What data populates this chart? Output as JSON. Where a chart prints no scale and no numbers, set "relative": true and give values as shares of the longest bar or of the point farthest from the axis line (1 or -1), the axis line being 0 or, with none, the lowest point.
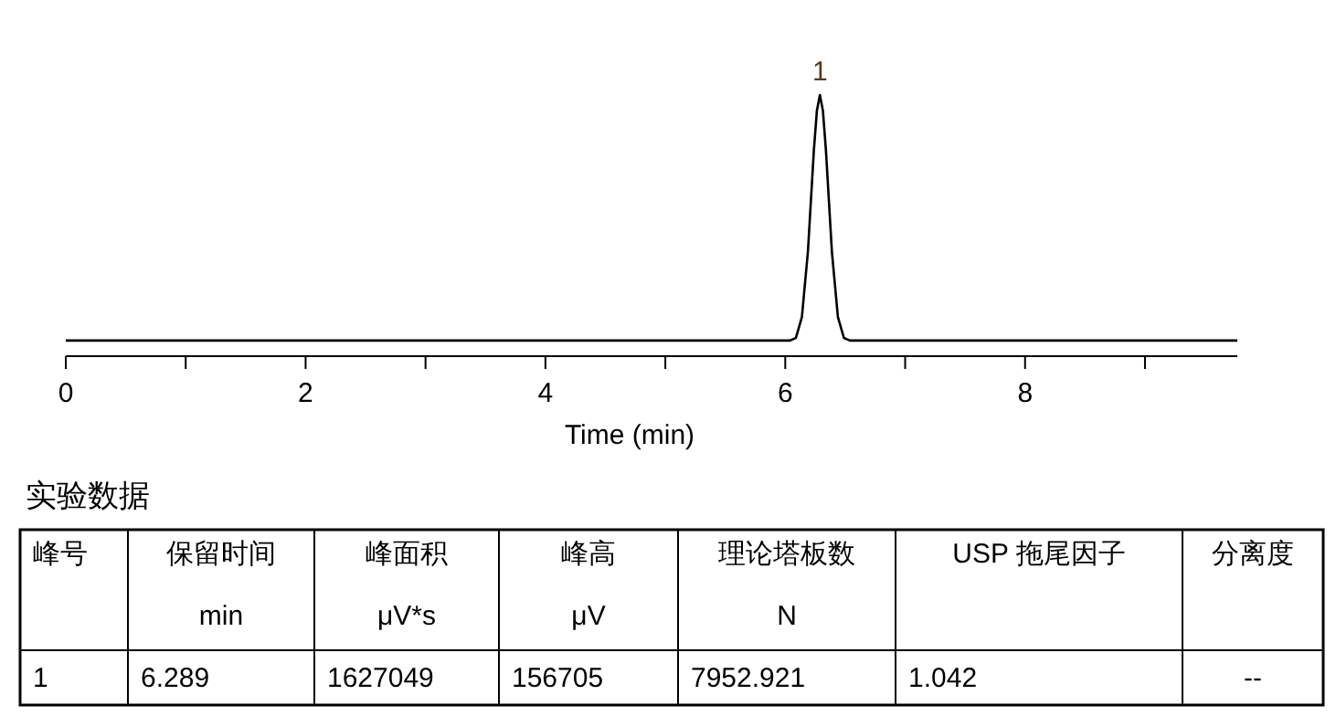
{
  "chart_data": {
    "type": "line",
    "xlabel": "Time (min)",
    "relative": true,
    "xlim": [
      0,
      9.77
    ],
    "xticks": [
      0,
      {
        "value": 1,
        "label": null
      },
      2,
      {
        "value": 3,
        "label": null
      },
      4,
      {
        "value": 5,
        "label": null
      },
      6,
      {
        "value": 7,
        "label": null
      },
      8,
      {
        "value": 9,
        "label": null
      }
    ],
    "x": [
      0,
      5.989,
      6.039,
      6.089,
      6.139,
      6.189,
      6.239,
      6.264,
      6.289,
      6.314,
      6.339,
      6.389,
      6.439,
      6.489,
      6.539,
      6.589,
      9.77
    ],
    "values": [
      0.06,
      0.06,
      0.06,
      0.07,
      0.15,
      0.4,
      0.79,
      0.94,
      1,
      0.94,
      0.79,
      0.4,
      0.15,
      0.07,
      0.06,
      0.06,
      0.06
    ],
    "color": "#000000",
    "line_style": "solid",
    "annotations": [
      {
        "text": "1",
        "x": 6.289,
        "y": 1
      },
      "实验数据",
      "峰号",
      "保留时间\nmin",
      "峰面积\nμV*s",
      "峰高\nμV",
      "理论塔板数\nN",
      "USP 拖尾因子",
      "分离度",
      "1",
      "6.289",
      "1627049",
      "156705",
      "7952.921",
      "1.042",
      "--"
    ]
  }
}
